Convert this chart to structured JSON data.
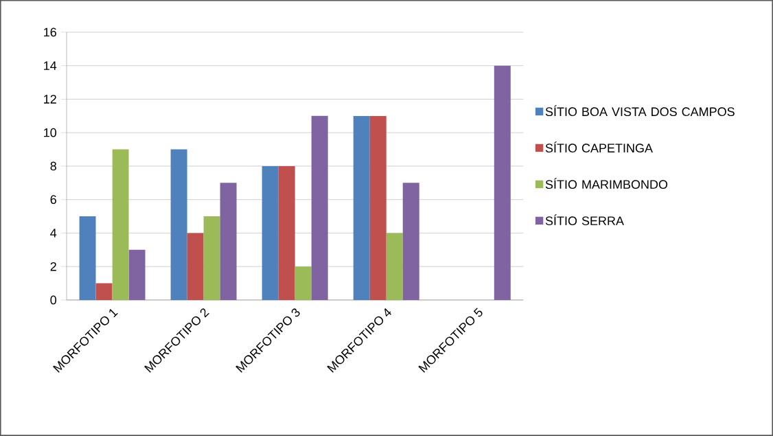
{
  "chart_data": {
    "type": "bar",
    "categories": [
      "MORFOTIPO 1",
      "MORFOTIPO 2",
      "MORFOTIPO 3",
      "MORFOTIPO 4",
      "MORFOTIPO 5"
    ],
    "series": [
      {
        "name": "SÍTIO BOA VISTA DOS CAMPOS",
        "color": "#4f81bd",
        "values": [
          5,
          9,
          8,
          11,
          0
        ]
      },
      {
        "name": "SÍTIO CAPETINGA",
        "color": "#c0504d",
        "values": [
          1,
          4,
          8,
          11,
          0
        ]
      },
      {
        "name": "SÍTIO MARIMBONDO",
        "color": "#9bbb59",
        "values": [
          9,
          5,
          2,
          4,
          0
        ]
      },
      {
        "name": "SÍTIO SERRA",
        "color": "#8064a2",
        "values": [
          3,
          7,
          11,
          7,
          14
        ]
      }
    ],
    "ylim": [
      0,
      16
    ],
    "yticks": [
      0,
      2,
      4,
      6,
      8,
      10,
      12,
      14,
      16
    ],
    "grid": "y",
    "legend": "right"
  }
}
